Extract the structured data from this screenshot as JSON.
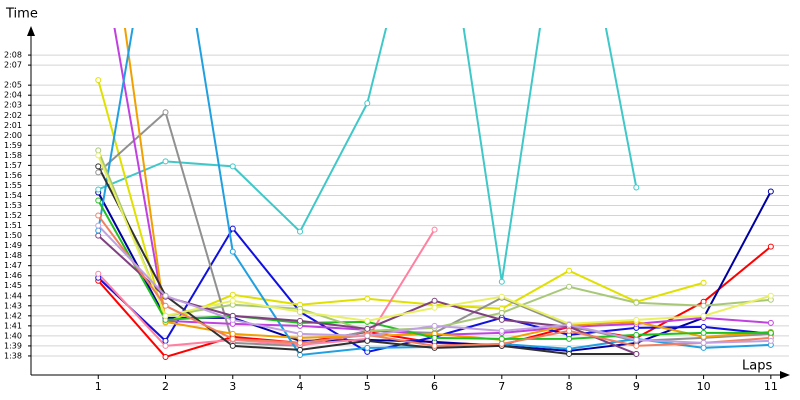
{
  "chart_data": {
    "type": "line",
    "y_label": "Time",
    "x_label": "Laps",
    "x": [
      1,
      2,
      3,
      4,
      5,
      6,
      7,
      8,
      9,
      10,
      11
    ],
    "xlim": [
      0,
      11.27
    ],
    "xticks": [
      1,
      2,
      3,
      4,
      5,
      6,
      7,
      8,
      9,
      10,
      11
    ],
    "ylim": [
      96.1,
      130.7
    ],
    "yticks": [
      {
        "value": 98,
        "label": "1:38"
      },
      {
        "value": 99,
        "label": "1:39"
      },
      {
        "value": 100,
        "label": "1:40"
      },
      {
        "value": 101,
        "label": "1:41"
      },
      {
        "value": 102,
        "label": "1:42"
      },
      {
        "value": 103,
        "label": "1:43"
      },
      {
        "value": 104,
        "label": "1:44"
      },
      {
        "value": 105,
        "label": "1:45"
      },
      {
        "value": 106,
        "label": "1:46"
      },
      {
        "value": 107,
        "label": "1:47"
      },
      {
        "value": 108,
        "label": "1:48"
      },
      {
        "value": 109,
        "label": "1:49"
      },
      {
        "value": 110,
        "label": "1:50"
      },
      {
        "value": 111,
        "label": "1:51"
      },
      {
        "value": 112,
        "label": "1:52"
      },
      {
        "value": 113,
        "label": "1:53"
      },
      {
        "value": 114,
        "label": "1:54"
      },
      {
        "value": 115,
        "label": "1:55"
      },
      {
        "value": 116,
        "label": "1:56"
      },
      {
        "value": 117,
        "label": "1:57"
      },
      {
        "value": 118,
        "label": "1:58"
      },
      {
        "value": 119,
        "label": "1:59"
      },
      {
        "value": 120,
        "label": "2:00"
      },
      {
        "value": 121,
        "label": "2:01"
      },
      {
        "value": 122,
        "label": "2:02"
      },
      {
        "value": 123,
        "label": "2:03"
      },
      {
        "value": 124,
        "label": "2:04"
      },
      {
        "value": 125,
        "label": "2:05"
      },
      {
        "value": 127,
        "label": "2:07"
      },
      {
        "value": 128,
        "label": "2:08"
      }
    ],
    "grid": true,
    "series": [
      {
        "color": "#ff0000",
        "values": [
          105.5,
          97.9,
          99.9,
          99.3,
          100.4,
          99.3,
          99.1,
          100.9,
          99.8,
          103.4,
          108.9
        ]
      },
      {
        "color": "#0000a0",
        "values": [
          114.3,
          101.8,
          101.8,
          99.5,
          99.6,
          99.4,
          99.0,
          98.5,
          99.3,
          101.8,
          114.4
        ]
      },
      {
        "color": "#1010e0",
        "values": [
          105.8,
          99.5,
          110.7,
          102.4,
          98.4,
          99.9,
          101.8,
          100.1,
          100.8,
          100.9,
          100.2
        ]
      },
      {
        "color": "#40c8c8",
        "values": [
          114.6,
          117.4,
          116.9,
          110.4,
          123.2,
          150,
          105.4,
          150,
          114.8,
          null,
          null
        ]
      },
      {
        "color": "#e0e000",
        "values": [
          125.5,
          101.3,
          104.1,
          103.1,
          103.7,
          103.1,
          102.7,
          106.5,
          103.4,
          105.3,
          null
        ]
      },
      {
        "color": "#909090",
        "values": [
          116.3,
          122.3,
          99.3,
          99.0,
          100.5,
          100.3,
          103.8,
          101.0,
          99.5,
          99.8,
          100.2
        ]
      },
      {
        "color": "#ff80a0",
        "values": [
          106.2,
          99.0,
          99.6,
          99.1,
          99.7,
          110.6,
          null,
          null,
          null,
          null,
          null
        ]
      },
      {
        "color": "#c040e0",
        "values": [
          140,
          101.5,
          101.2,
          101.0,
          100.6,
          100.1,
          100.3,
          100.9,
          101.2,
          101.8,
          101.3
        ]
      },
      {
        "color": "#f0a000",
        "values": [
          150,
          101.4,
          100.2,
          99.8,
          100.0,
          100.2,
          99.6,
          101.1,
          101.4,
          99.9,
          100.4
        ]
      },
      {
        "color": "#20a0e0",
        "values": [
          110.5,
          150,
          108.4,
          98.1,
          98.8,
          98.9,
          99.2,
          98.7,
          99.7,
          98.8,
          99.1
        ]
      },
      {
        "color": "#20c020",
        "values": [
          113.5,
          101.6,
          102.0,
          101.3,
          101.4,
          99.8,
          99.7,
          99.7,
          100.1,
          100.3,
          100.3
        ]
      },
      {
        "color": "#a8c878",
        "values": [
          118.5,
          102.0,
          103.1,
          102.7,
          100.5,
          100.8,
          102.3,
          104.9,
          103.3,
          103.0,
          103.6
        ]
      },
      {
        "color": "#303030",
        "values": [
          116.9,
          104.0,
          99.0,
          98.6,
          99.5,
          98.8,
          99.0,
          98.2,
          98.2,
          null,
          null
        ]
      },
      {
        "color": "#804080",
        "values": [
          110.0,
          103.9,
          102.0,
          101.5,
          100.7,
          103.5,
          101.6,
          100.9,
          98.2,
          null,
          null
        ]
      },
      {
        "color": "#e8f060",
        "values": [
          118.0,
          102.0,
          103.5,
          102.4,
          101.5,
          102.8,
          103.9,
          101.2,
          101.6,
          102.0,
          104.0
        ]
      },
      {
        "color": "#f08060",
        "values": [
          112.0,
          103.0,
          99.7,
          99.3,
          100.1,
          99.0,
          99.2,
          100.5,
          99.0,
          99.3,
          99.8
        ]
      },
      {
        "color": "#c0a0e0",
        "values": [
          111.0,
          104.0,
          101.6,
          100.2,
          100.0,
          101.0,
          100.5,
          101.1,
          99.6,
          99.3,
          99.5
        ]
      }
    ]
  }
}
